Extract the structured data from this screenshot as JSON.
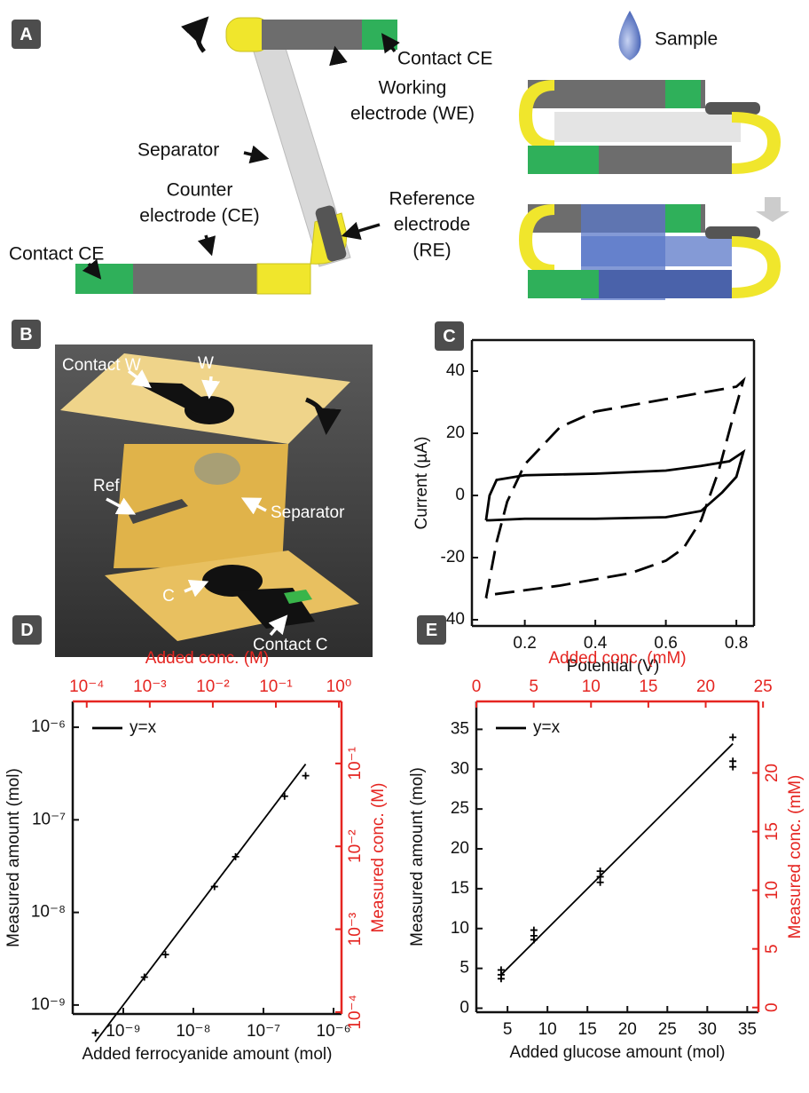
{
  "diagram_a": {
    "label": "A",
    "annotations": [
      {
        "lines": [
          "Contact CE"
        ]
      },
      {
        "lines": [
          "Working",
          "electrode (WE)"
        ]
      },
      {
        "lines": [
          "Separator"
        ]
      },
      {
        "lines": [
          "Counter",
          "electrode (CE)"
        ]
      },
      {
        "lines": [
          "Reference",
          "electrode",
          "(RE)"
        ]
      },
      {
        "lines": [
          "Contact CE"
        ]
      },
      {
        "lines": [
          "Sample"
        ]
      }
    ]
  },
  "photo_b": {
    "label": "B",
    "annotations": [
      "Contact W",
      "W",
      "Ref",
      "Separator",
      "C",
      "Contact C"
    ]
  },
  "chart_data": [
    {
      "panel": "C",
      "type": "line",
      "xlabel": "Potential (V)",
      "ylabel": "Current (µA)",
      "xlim": [
        0.05,
        0.85
      ],
      "ylim": [
        -42,
        50
      ],
      "xticks": [
        0.2,
        0.4,
        0.6,
        0.8
      ],
      "yticks": [
        -40,
        -20,
        0,
        20,
        40
      ],
      "series": [
        {
          "color": "#000000",
          "dash": false,
          "x": [
            0.09,
            0.1,
            0.12,
            0.2,
            0.4,
            0.6,
            0.7,
            0.78,
            0.82,
            0.8,
            0.76,
            0.7,
            0.6,
            0.4,
            0.2,
            0.1,
            0.09
          ],
          "values": [
            -8,
            0,
            5,
            6.5,
            7,
            8,
            9.5,
            11,
            14,
            6,
            1,
            -5,
            -7,
            -7.5,
            -7.5,
            -8,
            -8
          ]
        },
        {
          "color": "#000000",
          "dash": true,
          "x": [
            0.09,
            0.12,
            0.15,
            0.2,
            0.3,
            0.4,
            0.5,
            0.6,
            0.7,
            0.8,
            0.82,
            0.79,
            0.75,
            0.7,
            0.65,
            0.6,
            0.5,
            0.4,
            0.3,
            0.2,
            0.1,
            0.09
          ],
          "values": [
            -33,
            -15,
            -2,
            10,
            22,
            27,
            29,
            31,
            33,
            35,
            37,
            25,
            8,
            -8,
            -17,
            -21,
            -25,
            -27,
            -29,
            -30.5,
            -32,
            -33
          ]
        }
      ]
    },
    {
      "panel": "D",
      "type": "scatter",
      "xlabel": "Added ferrocyanide amount (mol)",
      "ylabel": "Measured amount (mol)",
      "x2label": "Added conc. (M)",
      "y2label": "Measured conc. (M)",
      "secondary_color": "#e52521",
      "xscale": "log",
      "yscale": "log",
      "legend": "upper left",
      "xlim": [
        1.9e-10,
        1.3e-06
      ],
      "ylim": [
        8e-10,
        1.9e-06
      ],
      "x2lim": [
        6e-05,
        1.1
      ],
      "y2lim": [
        9.5e-05,
        0.56
      ],
      "xticks": [
        {
          "value": 1e-09,
          "label": "10⁻⁹"
        },
        {
          "value": 1e-08,
          "label": "10⁻⁸"
        },
        {
          "value": 1e-07,
          "label": "10⁻⁷"
        },
        {
          "value": 1e-06,
          "label": "10⁻⁶"
        }
      ],
      "yticks": [
        {
          "value": 1e-09,
          "label": "10⁻⁹"
        },
        {
          "value": 1e-08,
          "label": "10⁻⁸"
        },
        {
          "value": 1e-07,
          "label": "10⁻⁷"
        },
        {
          "value": 1e-06,
          "label": "10⁻⁶"
        }
      ],
      "x2ticks": [
        {
          "value": 0.0001,
          "label": "10⁻⁴"
        },
        {
          "value": 0.001,
          "label": "10⁻³"
        },
        {
          "value": 0.01,
          "label": "10⁻²"
        },
        {
          "value": 0.1,
          "label": "10⁻¹"
        },
        {
          "value": 1,
          "label": "10⁰"
        }
      ],
      "y2ticks": [
        {
          "value": 0.0001,
          "label": "10⁻⁴"
        },
        {
          "value": 0.001,
          "label": "10⁻³"
        },
        {
          "value": 0.01,
          "label": "10⁻²"
        },
        {
          "value": 0.1,
          "label": "10⁻¹"
        }
      ],
      "series": [
        {
          "name": "y=x",
          "style": "line",
          "color": "#000000",
          "x": [
            4e-10,
            4e-07
          ],
          "values": [
            4e-10,
            4e-07
          ]
        },
        {
          "style": "marker",
          "marker": "+",
          "color": "#000000",
          "x": [
            4e-10,
            2e-09,
            4e-09,
            2e-08,
            4e-08,
            2e-07,
            4e-07
          ],
          "values": [
            5e-10,
            2e-09,
            3.5e-09,
            1.9e-08,
            4e-08,
            1.8e-07,
            3e-07
          ]
        }
      ]
    },
    {
      "panel": "E",
      "type": "scatter",
      "xlabel": "Added glucose amount (mol)",
      "ylabel": "Measured amount (mol)",
      "x2label": "Added conc. (mM)",
      "y2label": "Measured conc. (mM)",
      "secondary_color": "#e52521",
      "legend": "upper left",
      "xlim": [
        1.1,
        36.4
      ],
      "ylim": [
        -0.5,
        38.5
      ],
      "x2lim": [
        0,
        24.6
      ],
      "y2lim": [
        -0.4,
        26.1
      ],
      "xticks": [
        5,
        10,
        15,
        20,
        25,
        30,
        35
      ],
      "yticks": [
        0,
        5,
        10,
        15,
        20,
        25,
        30,
        35
      ],
      "x2ticks": [
        0,
        5,
        10,
        15,
        20,
        25
      ],
      "y2ticks": [
        0,
        5,
        10,
        15,
        20
      ],
      "series": [
        {
          "name": "y=x",
          "style": "line",
          "color": "#000000",
          "x": [
            4.2,
            33.2
          ],
          "values": [
            4.2,
            33.2
          ]
        },
        {
          "style": "marker",
          "marker": "+",
          "color": "#000000",
          "x": [
            4.2,
            4.2,
            4.2,
            8.3,
            8.3,
            8.3,
            16.6,
            16.6,
            16.6,
            33.2,
            33.2,
            33.2
          ],
          "values": [
            4.8,
            4.2,
            3.7,
            9.8,
            9.1,
            8.6,
            17.2,
            16.5,
            15.8,
            34,
            31,
            30.3
          ]
        }
      ]
    }
  ]
}
